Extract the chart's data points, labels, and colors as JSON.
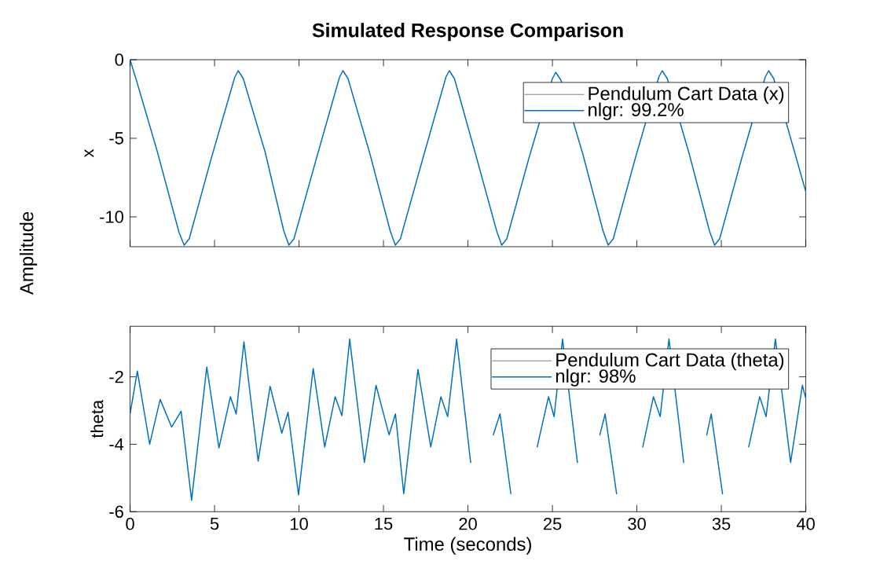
{
  "chart_data": [
    {
      "type": "line",
      "title": "Simulated Response Comparison",
      "ylabel": "x",
      "annotations": [
        "Amplitude"
      ],
      "x": [
        0,
        0.4,
        1.6,
        2.9,
        3.2,
        3.5,
        4.8,
        6.2,
        6.4,
        6.7,
        8.0,
        9.1,
        9.4,
        9.7,
        11.0,
        12.4,
        12.6,
        12.9,
        14.2,
        15.4,
        15.7,
        16.0,
        17.3,
        18.7,
        18.9,
        19.2,
        20.5,
        21.7,
        22.0,
        22.3,
        23.6,
        25.0,
        25.2,
        25.5,
        26.8,
        28.0,
        28.3,
        28.6,
        29.9,
        31.3,
        31.5,
        31.8,
        33.1,
        34.3,
        34.6,
        34.9,
        36.2,
        37.6,
        37.8,
        38.1,
        40
      ],
      "series": [
        {
          "name": "Pendulum Cart Data (x)",
          "color": "#7f7f7f",
          "values": [
            null,
            null,
            null,
            null,
            null,
            null,
            null,
            null,
            null,
            null,
            null,
            null,
            null,
            null,
            null,
            null,
            null,
            null,
            null,
            null,
            null,
            null,
            null,
            null,
            null,
            null,
            null,
            null,
            null,
            null,
            null,
            null,
            null,
            null,
            null,
            null,
            null,
            null,
            null,
            null,
            null,
            null,
            null,
            null,
            null,
            null,
            null,
            null,
            null,
            null,
            null
          ]
        },
        {
          "name": "nlgr: 99.2%",
          "color": "#0072bd",
          "values": [
            0,
            -1.4,
            -5.8,
            -11.0,
            -11.8,
            -11.4,
            -6.3,
            -1.1,
            -0.7,
            -1.2,
            -5.9,
            -10.9,
            -11.8,
            -11.4,
            -6.4,
            -1.1,
            -0.7,
            -1.2,
            -6.0,
            -10.9,
            -11.8,
            -11.4,
            -6.4,
            -1.1,
            -0.7,
            -1.2,
            -6.2,
            -10.9,
            -11.8,
            -11.4,
            -6.3,
            -1.2,
            -0.8,
            -1.3,
            -6.0,
            -10.9,
            -11.8,
            -11.4,
            -6.3,
            -1.1,
            -0.7,
            -1.2,
            -6.0,
            -10.9,
            -11.8,
            -11.4,
            -6.3,
            -1.1,
            -0.7,
            -1.2,
            -8.4
          ]
        }
      ],
      "xlim": [
        0,
        40
      ],
      "xticks": [
        0,
        5,
        10,
        15,
        20,
        25,
        30,
        35,
        40
      ],
      "ylim": [
        -11.9,
        0
      ],
      "yticks": [
        -10,
        -5,
        0
      ],
      "tick_labels": "y",
      "legend": "top right",
      "line_style": "solid",
      "grid": false
    },
    {
      "type": "line",
      "xlabel": "Time (seconds)",
      "ylabel": "theta",
      "x": [
        0,
        0.43,
        1.16,
        1.78,
        2.46,
        3.02,
        3.64,
        4.54,
        5.26,
        5.94,
        6.28,
        6.74,
        7.58,
        8.29,
        8.98,
        9.35,
        9.97,
        10.84,
        11.52,
        12.14,
        12.54,
        13.0,
        13.87,
        14.56,
        15.33,
        15.71,
        16.2,
        17.04,
        17.8,
        18.4,
        18.8,
        19.33,
        20.16,
        20.9,
        21.5,
        21.9,
        22.54,
        23.35,
        24.1,
        24.77,
        25.1,
        25.6,
        26.48,
        27.2,
        27.81,
        28.12,
        28.8,
        29.65,
        30.35,
        30.98,
        31.38,
        31.9,
        32.77,
        33.5,
        34.14,
        34.4,
        35.07,
        35.95,
        36.62,
        37.27,
        37.65,
        38.2,
        39.1,
        39.8,
        40
      ],
      "series": [
        {
          "name": "Pendulum Cart Data (theta)",
          "color": "#7f7f7f",
          "values": [
            null,
            null,
            null,
            null,
            null,
            null,
            null,
            null,
            null,
            null,
            null,
            null,
            null,
            null,
            null,
            null,
            null,
            null,
            null,
            null,
            null,
            null,
            null,
            null,
            null,
            null,
            null,
            null,
            null,
            null,
            null,
            null,
            null,
            null,
            null,
            null,
            null,
            null,
            null,
            null,
            null,
            null,
            null,
            null,
            null,
            null,
            null,
            null,
            null,
            null,
            null,
            null,
            null,
            null,
            null,
            null,
            null,
            null,
            null,
            null,
            null,
            null,
            null,
            null,
            null
          ]
        },
        {
          "name": "nlgr: 98%",
          "color": "#0072bd",
          "values": [
            -3.1,
            -1.83,
            -4.0,
            -2.67,
            -3.49,
            -3.02,
            -5.66,
            -1.71,
            -4.11,
            -2.59,
            -3.1,
            -0.96,
            -4.5,
            -2.28,
            -3.67,
            -3.05,
            -5.5,
            -1.75,
            -4.08,
            -2.59,
            -3.15,
            -0.88,
            -4.54,
            -2.25,
            -3.72,
            -3.1,
            -5.47,
            -1.78,
            -4.08,
            -2.59,
            -3.18,
            -0.88,
            -4.54,
            null,
            -3.72,
            -3.1,
            -5.47,
            null,
            -4.08,
            -2.59,
            -3.18,
            -0.88,
            -4.54,
            null,
            -3.72,
            -3.1,
            -5.47,
            null,
            -4.08,
            -2.59,
            -3.18,
            -0.88,
            -4.54,
            null,
            -3.72,
            -3.1,
            -5.47,
            null,
            -4.08,
            -2.59,
            -3.18,
            -0.88,
            -4.54,
            -2.25,
            -2.64
          ]
        }
      ],
      "xlim": [
        0,
        40
      ],
      "xticks": [
        0,
        5,
        10,
        15,
        20,
        25,
        30,
        35,
        40
      ],
      "ylim": [
        -6,
        -0.5
      ],
      "yticks": [
        -6,
        -4,
        -2
      ],
      "legend": "top right",
      "line_style": "solid",
      "grid": false
    }
  ]
}
